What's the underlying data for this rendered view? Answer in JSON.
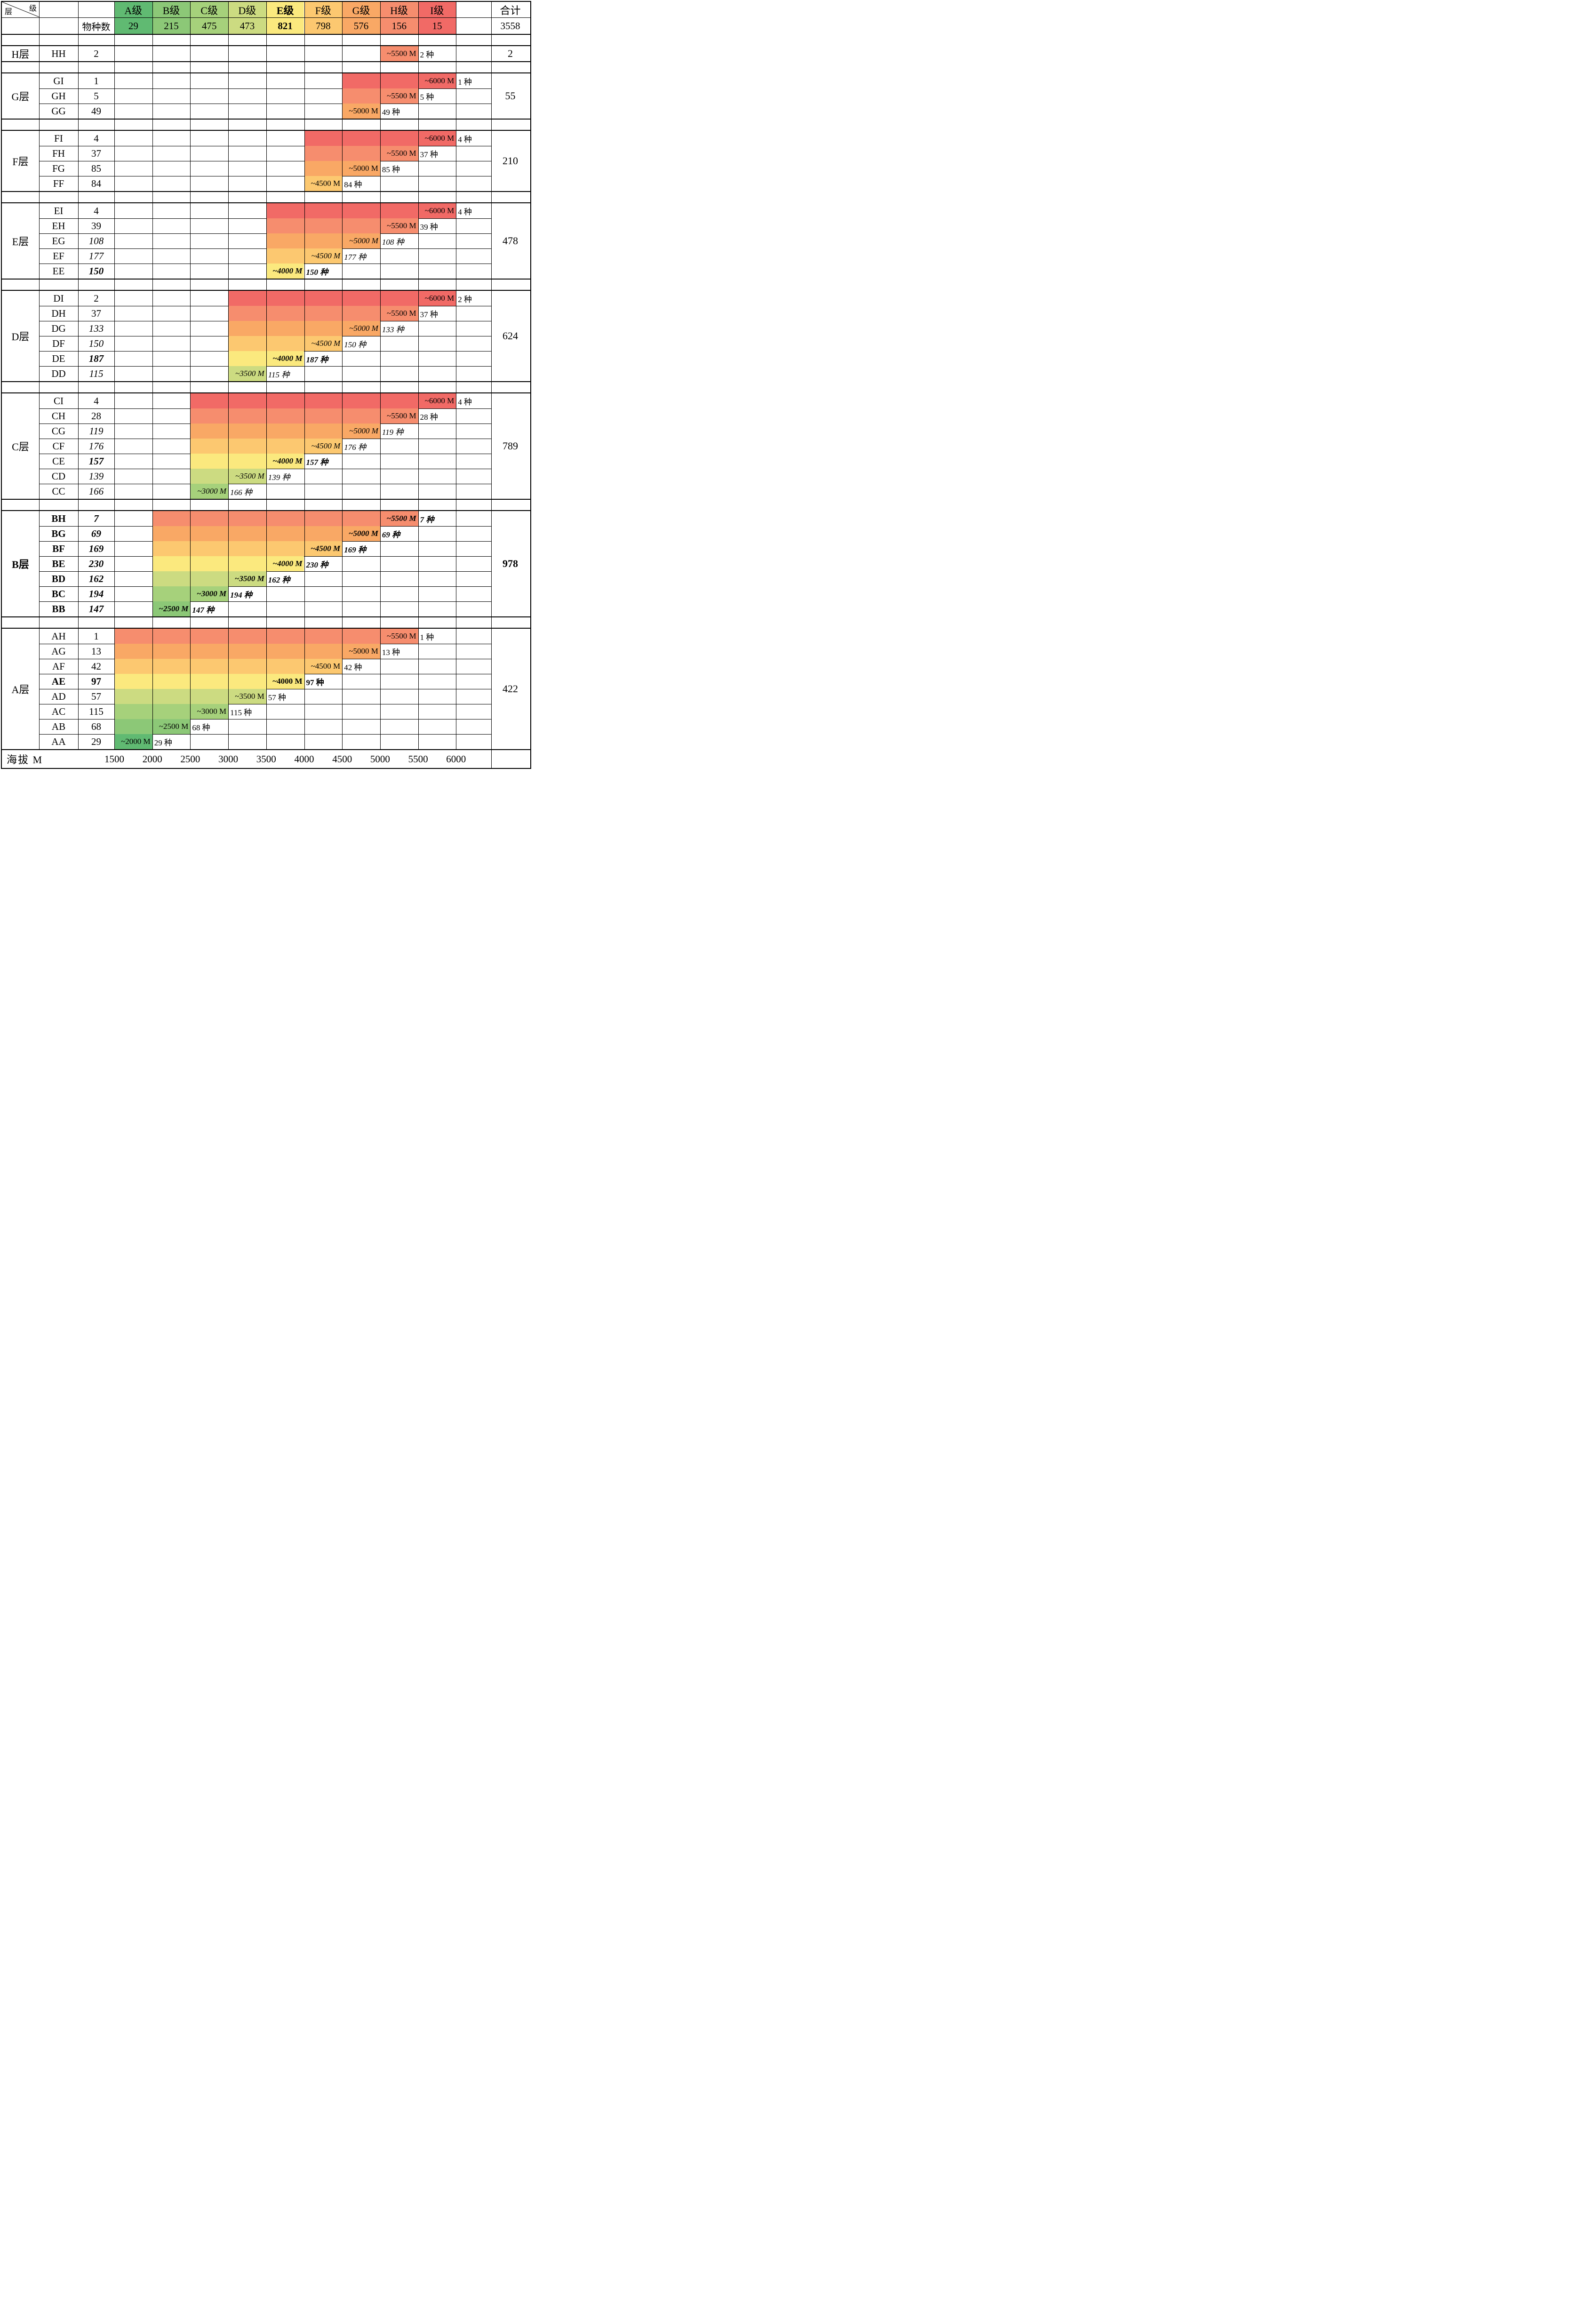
{
  "chart_data": {
    "type": "bar",
    "subtype": "horizontal-elevation-range-table",
    "corner": {
      "top": "级",
      "bottom": "层"
    },
    "species_label": "物种数",
    "totals_label": "合计",
    "grand_total": "3558",
    "axis_label": "海拔 M",
    "x_ticks": [
      1500,
      2000,
      2500,
      3000,
      3500,
      4000,
      4500,
      5000,
      5500,
      6000
    ],
    "xlim": [
      1500,
      6000
    ],
    "grades": [
      {
        "label": "A级",
        "count": "29",
        "color": "#60ba72",
        "bold": false
      },
      {
        "label": "B级",
        "count": "215",
        "color": "#8cc877",
        "bold": false
      },
      {
        "label": "C级",
        "count": "475",
        "color": "#a6d17b",
        "bold": false
      },
      {
        "label": "D级",
        "count": "473",
        "color": "#ccdb81",
        "bold": false
      },
      {
        "label": "E级",
        "count": "821",
        "color": "#fbe97e",
        "bold": true
      },
      {
        "label": "F级",
        "count": "798",
        "color": "#fcc870",
        "bold": false
      },
      {
        "label": "G级",
        "count": "576",
        "color": "#f9a865",
        "bold": false
      },
      {
        "label": "H级",
        "count": "156",
        "color": "#f68d6e",
        "bold": false
      },
      {
        "label": "I级",
        "count": "15",
        "color": "#f16a66",
        "bold": false
      }
    ],
    "grade_colors": {
      "2000": "#60ba72",
      "2500": "#8cc877",
      "3000": "#a6d17b",
      "3500": "#ccdb81",
      "4000": "#fbe97e",
      "4500": "#fcc870",
      "5000": "#f9a865",
      "5500": "#f68d6e",
      "6000": "#f16a66"
    },
    "groups": [
      {
        "layer": "H层",
        "layer_style": "r",
        "total": "2",
        "total_style": "r",
        "rows": [
          {
            "code": "HH",
            "code_style": "r",
            "count": "2",
            "num_style": "r",
            "start": 5000,
            "end": 5500,
            "bar_label": "~5500 M",
            "species": "2 种"
          }
        ]
      },
      {
        "layer": "G层",
        "layer_style": "r",
        "total": "55",
        "total_style": "r",
        "rows": [
          {
            "code": "GI",
            "code_style": "r",
            "count": "1",
            "num_style": "r",
            "start": 4500,
            "end": 6000,
            "bar_label": "~6000 M",
            "species": "1 种"
          },
          {
            "code": "GH",
            "code_style": "r",
            "count": "5",
            "num_style": "r",
            "start": 4500,
            "end": 5500,
            "bar_label": "~5500 M",
            "species": "5 种"
          },
          {
            "code": "GG",
            "code_style": "r",
            "count": "49",
            "num_style": "r",
            "start": 4500,
            "end": 5000,
            "bar_label": "~5000 M",
            "species": "49 种"
          }
        ]
      },
      {
        "layer": "F层",
        "layer_style": "r",
        "total": "210",
        "total_style": "r",
        "rows": [
          {
            "code": "FI",
            "code_style": "r",
            "count": "4",
            "num_style": "r",
            "start": 4000,
            "end": 6000,
            "bar_label": "~6000 M",
            "species": "4 种"
          },
          {
            "code": "FH",
            "code_style": "r",
            "count": "37",
            "num_style": "r",
            "start": 4000,
            "end": 5500,
            "bar_label": "~5500 M",
            "species": "37 种"
          },
          {
            "code": "FG",
            "code_style": "r",
            "count": "85",
            "num_style": "r",
            "start": 4000,
            "end": 5000,
            "bar_label": "~5000 M",
            "species": "85 种"
          },
          {
            "code": "FF",
            "code_style": "r",
            "count": "84",
            "num_style": "r",
            "start": 4000,
            "end": 4500,
            "bar_label": "~4500 M",
            "species": "84 种"
          }
        ]
      },
      {
        "layer": "E层",
        "layer_style": "r",
        "total": "478",
        "total_style": "r",
        "rows": [
          {
            "code": "EI",
            "code_style": "r",
            "count": "4",
            "num_style": "r",
            "start": 3500,
            "end": 6000,
            "bar_label": "~6000 M",
            "species": "4 种"
          },
          {
            "code": "EH",
            "code_style": "r",
            "count": "39",
            "num_style": "r",
            "start": 3500,
            "end": 5500,
            "bar_label": "~5500 M",
            "species": "39 种"
          },
          {
            "code": "EG",
            "code_style": "r",
            "count": "108",
            "num_style": "i",
            "start": 3500,
            "end": 5000,
            "bar_label": "~5000 M",
            "species": "108 种"
          },
          {
            "code": "EF",
            "code_style": "r",
            "count": "177",
            "num_style": "i",
            "start": 3500,
            "end": 4500,
            "bar_label": "~4500 M",
            "species": "177 种"
          },
          {
            "code": "EE",
            "code_style": "r",
            "count": "150",
            "num_style": "bi",
            "start": 3500,
            "end": 4000,
            "bar_label": "~4000 M",
            "species": "150 种"
          }
        ]
      },
      {
        "layer": "D层",
        "layer_style": "r",
        "total": "624",
        "total_style": "r",
        "rows": [
          {
            "code": "DI",
            "code_style": "r",
            "count": "2",
            "num_style": "r",
            "start": 3000,
            "end": 6000,
            "bar_label": "~6000 M",
            "species": "2 种"
          },
          {
            "code": "DH",
            "code_style": "r",
            "count": "37",
            "num_style": "r",
            "start": 3000,
            "end": 5500,
            "bar_label": "~5500 M",
            "species": "37 种"
          },
          {
            "code": "DG",
            "code_style": "r",
            "count": "133",
            "num_style": "i",
            "start": 3000,
            "end": 5000,
            "bar_label": "~5000 M",
            "species": "133 种"
          },
          {
            "code": "DF",
            "code_style": "r",
            "count": "150",
            "num_style": "i",
            "start": 3000,
            "end": 4500,
            "bar_label": "~4500 M",
            "species": "150 种"
          },
          {
            "code": "DE",
            "code_style": "r",
            "count": "187",
            "num_style": "bi",
            "start": 3000,
            "end": 4000,
            "bar_label": "~4000 M",
            "species": "187 种"
          },
          {
            "code": "DD",
            "code_style": "r",
            "count": "115",
            "num_style": "i",
            "start": 3000,
            "end": 3500,
            "bar_label": "~3500 M",
            "species": "115 种"
          }
        ]
      },
      {
        "layer": "C层",
        "layer_style": "r",
        "total": "789",
        "total_style": "r",
        "rows": [
          {
            "code": "CI",
            "code_style": "r",
            "count": "4",
            "num_style": "r",
            "start": 2500,
            "end": 6000,
            "bar_label": "~6000 M",
            "species": "4 种"
          },
          {
            "code": "CH",
            "code_style": "r",
            "count": "28",
            "num_style": "r",
            "start": 2500,
            "end": 5500,
            "bar_label": "~5500 M",
            "species": "28 种"
          },
          {
            "code": "CG",
            "code_style": "r",
            "count": "119",
            "num_style": "i",
            "start": 2500,
            "end": 5000,
            "bar_label": "~5000 M",
            "species": "119 种"
          },
          {
            "code": "CF",
            "code_style": "r",
            "count": "176",
            "num_style": "i",
            "start": 2500,
            "end": 4500,
            "bar_label": "~4500 M",
            "species": "176 种"
          },
          {
            "code": "CE",
            "code_style": "r",
            "count": "157",
            "num_style": "bi",
            "start": 2500,
            "end": 4000,
            "bar_label": "~4000 M",
            "species": "157 种"
          },
          {
            "code": "CD",
            "code_style": "r",
            "count": "139",
            "num_style": "i",
            "start": 2500,
            "end": 3500,
            "bar_label": "~3500 M",
            "species": "139 种"
          },
          {
            "code": "CC",
            "code_style": "r",
            "count": "166",
            "num_style": "i",
            "start": 2500,
            "end": 3000,
            "bar_label": "~3000 M",
            "species": "166 种"
          }
        ]
      },
      {
        "layer": "B层",
        "layer_style": "b",
        "total": "978",
        "total_style": "b",
        "rows": [
          {
            "code": "BH",
            "code_style": "b",
            "count": "7",
            "num_style": "bi",
            "start": 2000,
            "end": 5500,
            "bar_label": "~5500 M",
            "species": "7 种"
          },
          {
            "code": "BG",
            "code_style": "b",
            "count": "69",
            "num_style": "bi",
            "start": 2000,
            "end": 5000,
            "bar_label": "~5000 M",
            "species": "69 种"
          },
          {
            "code": "BF",
            "code_style": "b",
            "count": "169",
            "num_style": "bi",
            "start": 2000,
            "end": 4500,
            "bar_label": "~4500 M",
            "species": "169 种"
          },
          {
            "code": "BE",
            "code_style": "b",
            "count": "230",
            "num_style": "bi",
            "start": 2000,
            "end": 4000,
            "bar_label": "~4000 M",
            "species": "230 种"
          },
          {
            "code": "BD",
            "code_style": "b",
            "count": "162",
            "num_style": "bi",
            "start": 2000,
            "end": 3500,
            "bar_label": "~3500 M",
            "species": "162 种"
          },
          {
            "code": "BC",
            "code_style": "b",
            "count": "194",
            "num_style": "bi",
            "start": 2000,
            "end": 3000,
            "bar_label": "~3000 M",
            "species": "194 种"
          },
          {
            "code": "BB",
            "code_style": "b",
            "count": "147",
            "num_style": "bi",
            "start": 2000,
            "end": 2500,
            "bar_label": "~2500 M",
            "species": "147 种"
          }
        ]
      },
      {
        "layer": "A层",
        "layer_style": "r",
        "total": "422",
        "total_style": "r",
        "rows": [
          {
            "code": "AH",
            "code_style": "r",
            "count": "1",
            "num_style": "r",
            "start": 1500,
            "end": 5500,
            "bar_label": "~5500 M",
            "species": "1 种"
          },
          {
            "code": "AG",
            "code_style": "r",
            "count": "13",
            "num_style": "r",
            "start": 1500,
            "end": 5000,
            "bar_label": "~5000 M",
            "species": "13 种"
          },
          {
            "code": "AF",
            "code_style": "r",
            "count": "42",
            "num_style": "r",
            "start": 1500,
            "end": 4500,
            "bar_label": "~4500 M",
            "species": "42 种"
          },
          {
            "code": "AE",
            "code_style": "b",
            "count": "97",
            "num_style": "b",
            "start": 1500,
            "end": 4000,
            "bar_label": "~4000 M",
            "species": "97 种"
          },
          {
            "code": "AD",
            "code_style": "r",
            "count": "57",
            "num_style": "r",
            "start": 1500,
            "end": 3500,
            "bar_label": "~3500 M",
            "species": "57 种"
          },
          {
            "code": "AC",
            "code_style": "r",
            "count": "115",
            "num_style": "r",
            "start": 1500,
            "end": 3000,
            "bar_label": "~3000 M",
            "species": "115 种"
          },
          {
            "code": "AB",
            "code_style": "r",
            "count": "68",
            "num_style": "r",
            "start": 1500,
            "end": 2500,
            "bar_label": "~2500 M",
            "species": "68 种"
          },
          {
            "code": "AA",
            "code_style": "r",
            "count": "29",
            "num_style": "r",
            "start": 1500,
            "end": 2000,
            "bar_label": "~2000 M",
            "species": "29 种"
          }
        ]
      }
    ]
  }
}
